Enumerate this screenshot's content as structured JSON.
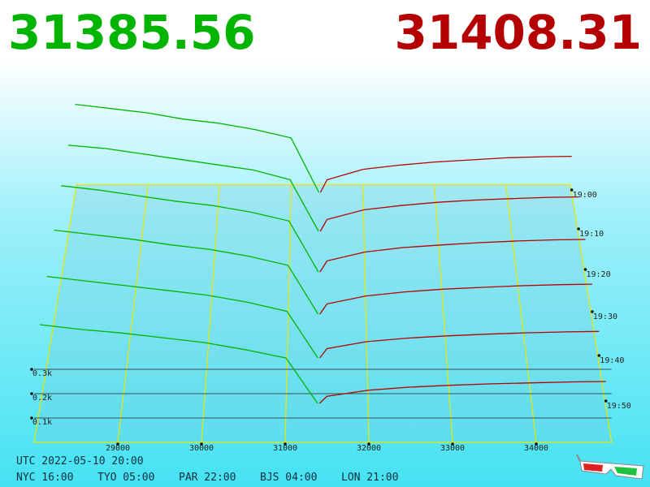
{
  "chart_data": {
    "type": "depth3d",
    "bid_price": 31385.56,
    "ask_price": 31408.31,
    "bid_color": "#00b400",
    "ask_color": "#b40000",
    "floor_color": "#e8e800",
    "xlim": [
      28000,
      34900
    ],
    "xticks": [
      29000,
      30000,
      31000,
      32000,
      33000,
      34000
    ],
    "ylim": [
      0,
      1000
    ],
    "yticks": [
      {
        "value": 100,
        "label": "0.1k"
      },
      {
        "value": 200,
        "label": "0.2k"
      },
      {
        "value": 300,
        "label": "0.3k"
      }
    ],
    "zticks": [
      "19:00",
      "19:10",
      "19:20",
      "19:30",
      "19:40",
      "19:50"
    ],
    "snapshots": [
      {
        "bid_prices": [
          28000,
          28500,
          29000,
          29500,
          30000,
          30500,
          31000,
          31385.56
        ],
        "bid_depth": [
          420,
          400,
          380,
          350,
          330,
          300,
          260,
          0
        ],
        "ask_prices": [
          31408.31,
          31500,
          32000,
          32500,
          33000,
          33500,
          34000,
          34500,
          34900
        ],
        "ask_depth": [
          0,
          60,
          110,
          130,
          145,
          155,
          165,
          170,
          172
        ]
      },
      {
        "bid_prices": [
          28000,
          28500,
          29000,
          29500,
          30000,
          30500,
          31000,
          31385.56
        ],
        "bid_depth": [
          400,
          385,
          360,
          335,
          310,
          285,
          240,
          0
        ],
        "ask_prices": [
          31408.31,
          31500,
          32000,
          32500,
          33000,
          33500,
          34000,
          34500,
          34900
        ],
        "ask_depth": [
          0,
          55,
          100,
          120,
          135,
          145,
          152,
          158,
          160
        ]
      },
      {
        "bid_prices": [
          28000,
          28500,
          29000,
          29500,
          30000,
          30500,
          31000,
          31385.56
        ],
        "bid_depth": [
          390,
          370,
          345,
          320,
          300,
          270,
          230,
          0
        ],
        "ask_prices": [
          31408.31,
          31500,
          32000,
          32500,
          33000,
          33500,
          34000,
          34500,
          34900
        ],
        "ask_depth": [
          0,
          50,
          90,
          110,
          122,
          132,
          140,
          145,
          147
        ]
      },
      {
        "bid_prices": [
          28000,
          28500,
          29000,
          29500,
          30000,
          30500,
          31000,
          31385.56
        ],
        "bid_depth": [
          370,
          350,
          330,
          305,
          285,
          255,
          215,
          0
        ],
        "ask_prices": [
          31408.31,
          31500,
          32000,
          32500,
          33000,
          33500,
          34000,
          34500,
          34900
        ],
        "ask_depth": [
          0,
          45,
          80,
          98,
          110,
          118,
          125,
          130,
          132
        ]
      },
      {
        "bid_prices": [
          28000,
          28500,
          29000,
          29500,
          30000,
          30500,
          31000,
          31385.56
        ],
        "bid_depth": [
          350,
          330,
          310,
          290,
          270,
          240,
          200,
          0
        ],
        "ask_prices": [
          31408.31,
          31500,
          32000,
          32500,
          33000,
          33500,
          34000,
          34500,
          34900
        ],
        "ask_depth": [
          0,
          40,
          70,
          85,
          95,
          102,
          108,
          112,
          114
        ]
      },
      {
        "bid_prices": [
          28000,
          28500,
          29000,
          29500,
          30000,
          30500,
          31000,
          31385.56
        ],
        "bid_depth": [
          330,
          310,
          295,
          275,
          255,
          225,
          190,
          0
        ],
        "ask_prices": [
          31408.31,
          31500,
          32000,
          32500,
          33000,
          33500,
          34000,
          34500,
          34900
        ],
        "ask_depth": [
          0,
          30,
          55,
          68,
          76,
          82,
          86,
          90,
          92
        ]
      }
    ]
  },
  "footer": {
    "utc": "UTC 2022-05-10 20:00",
    "zones": [
      "NYC 16:00",
      "TYO 05:00",
      "PAR 22:00",
      "BJS 04:00",
      "LON 21:00"
    ]
  }
}
